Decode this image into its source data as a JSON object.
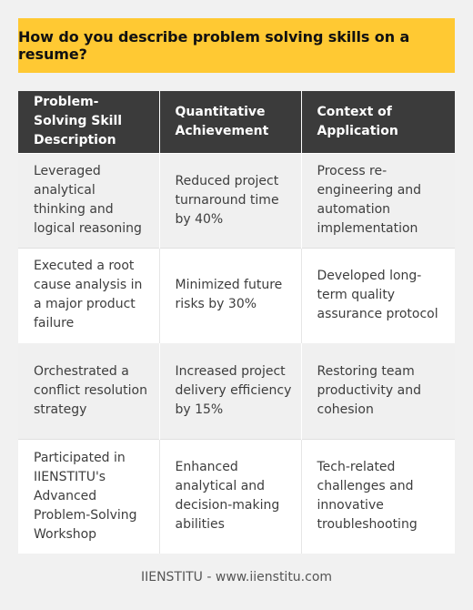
{
  "title": "How do you describe problem solving skills on a resume?",
  "table": {
    "headers": [
      "Problem-Solving Skill Description",
      "Quantitative Achievement",
      "Context of Application"
    ],
    "rows": [
      [
        "Leveraged analytical thinking and logical reasoning",
        "Reduced project turnaround time by 40%",
        "Process re-engineering and automation implementation"
      ],
      [
        "Executed a root cause analysis in a major product failure",
        "Minimized future risks by 30%",
        "Developed long-term quality assurance protocol"
      ],
      [
        "Orchestrated a conflict resolution strategy",
        "Increased project delivery efficiency by 15%",
        "Restoring team productivity and cohesion"
      ],
      [
        "Participated in IIENSTITU's Advanced Problem-Solving Workshop",
        "Enhanced analytical and decision-making abilities",
        "Tech-related challenges and innovative troubleshooting"
      ]
    ]
  },
  "footer": "IIENSTITU - www.iienstitu.com",
  "colors": {
    "title_bg": "#ffc933",
    "header_bg": "#3b3b3b",
    "page_bg": "#f1f1f1"
  }
}
